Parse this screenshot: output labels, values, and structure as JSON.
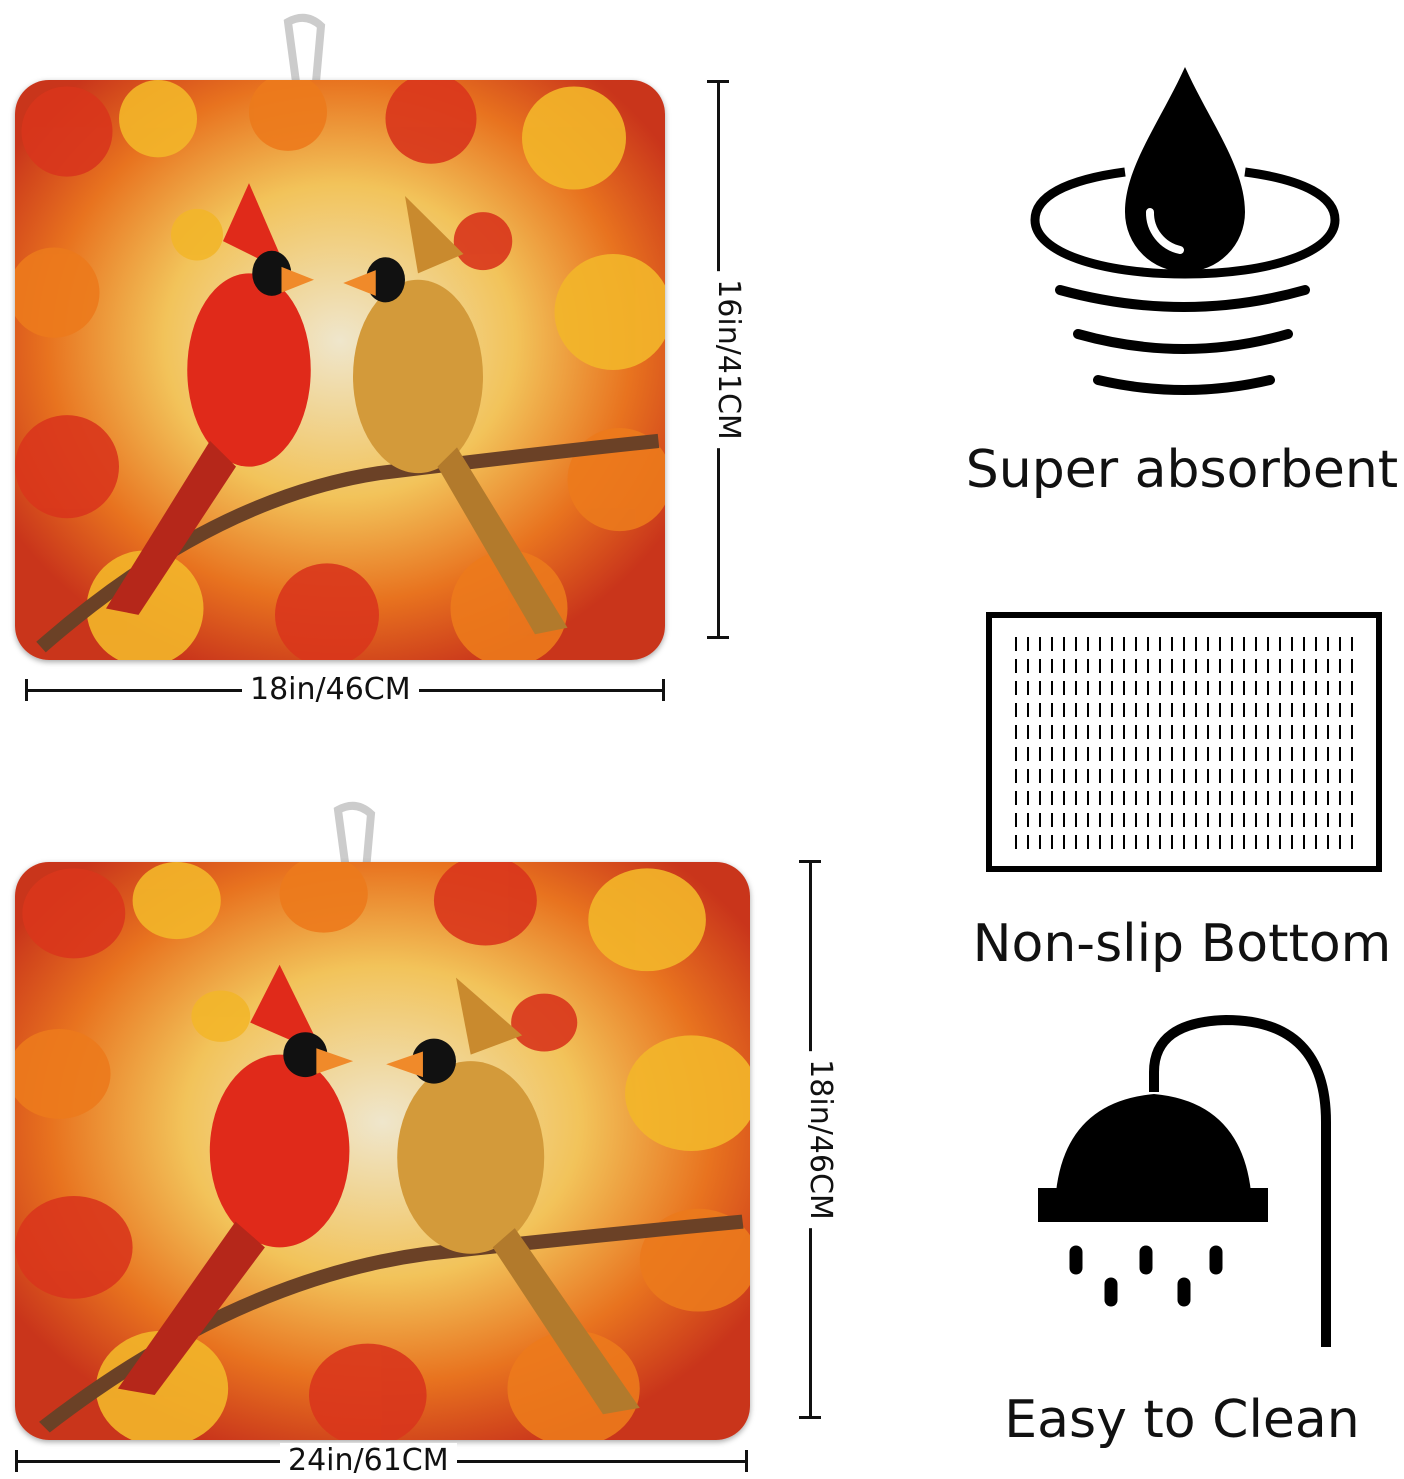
{
  "mats": [
    {
      "name": "square-mat",
      "width_label": "18in/46CM",
      "height_label": "16in/41CM"
    },
    {
      "name": "large-mat",
      "width_label": "24in/61CM",
      "height_label": "18in/46CM"
    }
  ],
  "features": [
    {
      "icon": "water-drop-icon",
      "label": "Super absorbent"
    },
    {
      "icon": "non-slip-grid-icon",
      "label": "Non-slip Bottom"
    },
    {
      "icon": "shower-icon",
      "label": "Easy to Clean"
    }
  ],
  "colors": {
    "leaf_red": "#d9361c",
    "leaf_orange": "#ec7a1c",
    "leaf_yellow": "#f3b62a",
    "cream": "#efe6cc",
    "male_cardinal": "#e02a1a",
    "female_cardinal": "#d39a3a"
  }
}
